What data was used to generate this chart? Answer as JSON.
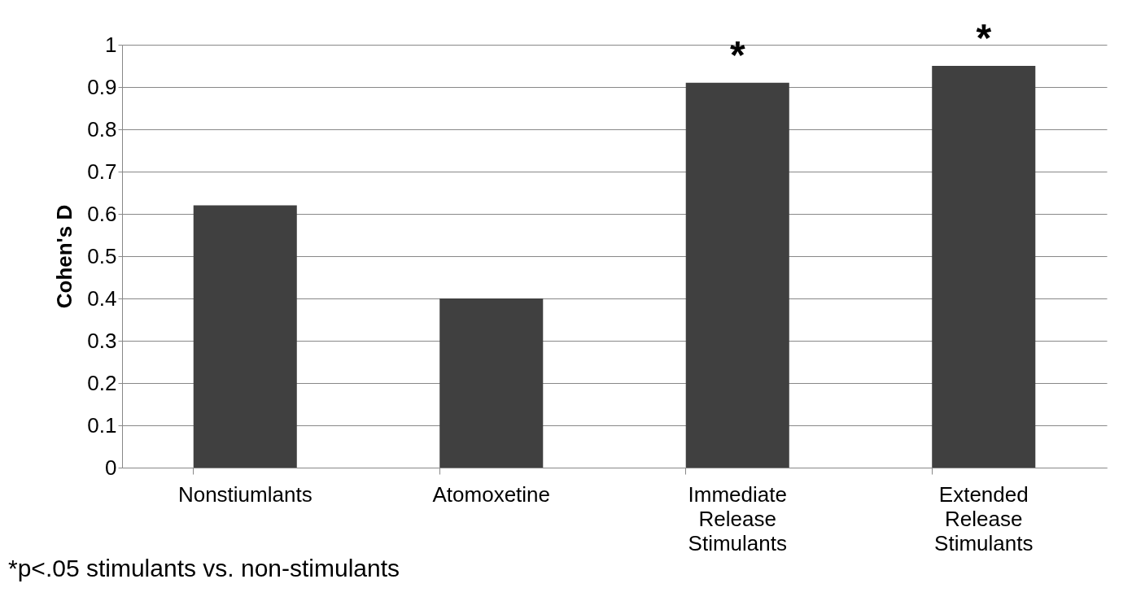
{
  "chart_data": {
    "type": "bar",
    "ylabel": "Cohen's D",
    "categories": [
      "Nonstiumlants",
      "Atomoxetine",
      "Immediate Release Stimulants",
      "Extended Release Stimulants"
    ],
    "values": [
      0.62,
      0.4,
      0.91,
      0.95
    ],
    "color": "#404040",
    "ylim": [
      0,
      1
    ],
    "yticks": [
      0,
      0.1,
      0.2,
      0.3,
      0.4,
      0.5,
      0.6,
      0.7,
      0.8,
      0.9,
      1
    ],
    "grid": "y",
    "annotations": [
      {
        "text": "*",
        "x": "Immediate Release Stimulants",
        "y": 0.91
      },
      {
        "text": "*",
        "x": "Extended Release Stimulants",
        "y": 0.95
      },
      "*p<.05 stimulants vs. non-stimulants"
    ]
  }
}
